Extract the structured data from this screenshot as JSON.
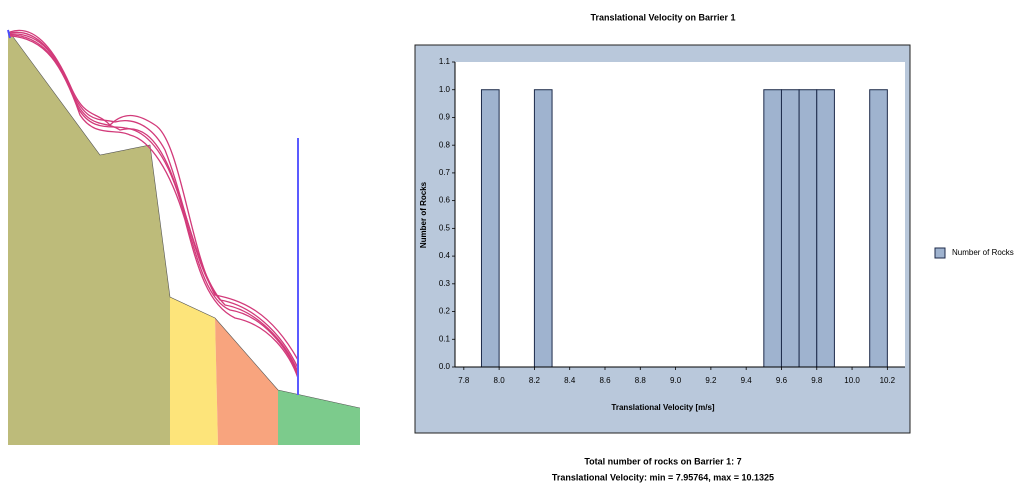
{
  "chart_data": {
    "type": "histogram",
    "title": "Translational Velocity on Barrier 1",
    "x_label": "Translational Velocity [m/s]",
    "y_label": "Number of Rocks",
    "bins": [
      7.8,
      7.9,
      8.0,
      8.1,
      8.2,
      8.3,
      8.4,
      8.5,
      8.6,
      8.7,
      8.8,
      8.9,
      9.0,
      9.1,
      9.2,
      9.3,
      9.4,
      9.5,
      9.6,
      9.7,
      9.8,
      9.9,
      10.0,
      10.1,
      10.2,
      10.3
    ],
    "series": [
      {
        "name": "Number of Rocks",
        "color": "#9fb3cf",
        "values": [
          0,
          1,
          0,
          0,
          1,
          0,
          0,
          0,
          0,
          0,
          0,
          0,
          0,
          0,
          0,
          0,
          0,
          1,
          1,
          1,
          1,
          0,
          0,
          1,
          0
        ]
      }
    ],
    "xlim": [
      7.75,
      10.3
    ],
    "ylim": [
      0,
      1.1
    ],
    "xticks": [
      7.8,
      {
        "value": 8.0,
        "label": "8.0"
      },
      8.2,
      8.4,
      8.6,
      8.8,
      {
        "value": 9.0,
        "label": "9.0"
      },
      9.2,
      9.4,
      9.6,
      9.8,
      {
        "value": 10.0,
        "label": "10.0"
      },
      10.2
    ],
    "yticks": [
      {
        "value": 0,
        "label": "0.0"
      },
      0.1,
      0.2,
      0.3,
      0.4,
      0.5,
      0.6,
      0.7,
      0.8,
      0.9,
      {
        "value": 1.0,
        "label": "1.0"
      },
      1.1
    ],
    "legend": "right",
    "annotations": [
      "Total number of rocks on Barrier 1: 7",
      "Translational Velocity: min = 7.95764, max = 10.1325"
    ]
  }
}
